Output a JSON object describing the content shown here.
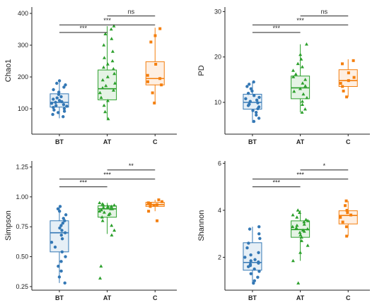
{
  "chart_data": [
    {
      "type": "box",
      "ylabel": "Chao1",
      "ylim": [
        20,
        420
      ],
      "yticks": [
        100,
        200,
        300,
        400
      ],
      "categories": [
        "BT",
        "AT",
        "C"
      ],
      "colors": [
        "#3478b5",
        "#2ca02c",
        "#f47f0e"
      ],
      "markers": [
        "circle",
        "triangle",
        "square"
      ],
      "boxes": [
        {
          "q1": 105,
          "median": 120,
          "q3": 147,
          "whisker_low": 70,
          "whisker_high": 190
        },
        {
          "q1": 128,
          "median": 163,
          "q3": 222,
          "whisker_low": 68,
          "whisker_high": 360
        },
        {
          "q1": 175,
          "median": 195,
          "q3": 248,
          "whisker_low": 115,
          "whisker_high": 355
        }
      ],
      "points": [
        [
          75,
          82,
          88,
          92,
          96,
          100,
          104,
          108,
          110,
          113,
          117,
          120,
          122,
          126,
          130,
          134,
          138,
          145,
          152,
          160,
          168,
          175,
          180,
          188
        ],
        [
          68,
          90,
          110,
          125,
          135,
          150,
          158,
          165,
          172,
          180,
          190,
          200,
          210,
          225,
          230,
          240,
          250,
          260,
          280,
          300,
          320,
          335,
          350,
          360
        ],
        [
          118,
          150,
          175,
          185,
          195,
          205,
          240,
          310,
          330,
          352
        ]
      ],
      "significance": [
        {
          "from": 0,
          "to": 1,
          "label": "***"
        },
        {
          "from": 0,
          "to": 2,
          "label": "***"
        },
        {
          "from": 1,
          "to": 2,
          "label": "ns"
        }
      ]
    },
    {
      "type": "box",
      "ylabel": "PD",
      "ylim": [
        3,
        31
      ],
      "yticks": [
        10,
        20,
        30
      ],
      "categories": [
        "BT",
        "AT",
        "C"
      ],
      "colors": [
        "#3478b5",
        "#2ca02c",
        "#f47f0e"
      ],
      "markers": [
        "circle",
        "triangle",
        "square"
      ],
      "boxes": [
        {
          "q1": 8.5,
          "median": 10,
          "q3": 11.8,
          "whisker_low": 5.5,
          "whisker_high": 14.5
        },
        {
          "q1": 10.8,
          "median": 13.2,
          "q3": 15.8,
          "whisker_low": 7.8,
          "whisker_high": 22.8
        },
        {
          "q1": 13.5,
          "median": 14.8,
          "q3": 17.2,
          "whisker_low": 11.2,
          "whisker_high": 19.5
        }
      ],
      "points": [
        [
          5.8,
          6.5,
          7.2,
          7.8,
          8.2,
          8.6,
          9.0,
          9.3,
          9.6,
          9.9,
          10.2,
          10.5,
          10.8,
          11.1,
          11.5,
          12.0,
          12.5,
          13.0,
          13.5,
          14.0,
          14.5
        ],
        [
          7.8,
          8.5,
          9.5,
          10.2,
          11.0,
          11.8,
          12.4,
          13.0,
          13.6,
          14.2,
          15.0,
          15.6,
          16.2,
          17.0,
          17.8,
          18.5,
          19.5,
          20.5,
          22.8
        ],
        [
          11.2,
          12.5,
          13.5,
          14.2,
          14.8,
          15.5,
          16.5,
          18.5,
          19.2
        ]
      ],
      "significance": [
        {
          "from": 0,
          "to": 1,
          "label": "***"
        },
        {
          "from": 0,
          "to": 2,
          "label": "***"
        },
        {
          "from": 1,
          "to": 2,
          "label": "ns"
        }
      ]
    },
    {
      "type": "box",
      "ylabel": "Simpson",
      "ylim": [
        0.22,
        1.3
      ],
      "yticks": [
        0.25,
        0.5,
        0.75,
        1.0,
        1.25
      ],
      "yticklabels": [
        "0.25",
        "0.50",
        "0.75",
        "1.00",
        "1.25"
      ],
      "categories": [
        "BT",
        "AT",
        "C"
      ],
      "colors": [
        "#3478b5",
        "#2ca02c",
        "#f47f0e"
      ],
      "markers": [
        "circle",
        "triangle",
        "square"
      ],
      "boxes": [
        {
          "q1": 0.54,
          "median": 0.7,
          "q3": 0.8,
          "whisker_low": 0.28,
          "whisker_high": 0.93
        },
        {
          "q1": 0.83,
          "median": 0.9,
          "q3": 0.925,
          "whisker_low": 0.69,
          "whisker_high": 0.95
        },
        {
          "q1": 0.92,
          "median": 0.935,
          "q3": 0.955,
          "whisker_low": 0.88,
          "whisker_high": 0.975
        }
      ],
      "points": [
        [
          0.28,
          0.33,
          0.38,
          0.42,
          0.46,
          0.5,
          0.54,
          0.58,
          0.62,
          0.65,
          0.68,
          0.7,
          0.72,
          0.74,
          0.76,
          0.78,
          0.8,
          0.82,
          0.85,
          0.88,
          0.9,
          0.92
        ],
        [
          0.32,
          0.42,
          0.68,
          0.72,
          0.76,
          0.8,
          0.83,
          0.85,
          0.86,
          0.87,
          0.88,
          0.89,
          0.9,
          0.9,
          0.91,
          0.91,
          0.92,
          0.92,
          0.93,
          0.93,
          0.94,
          0.95
        ],
        [
          0.8,
          0.88,
          0.92,
          0.93,
          0.935,
          0.94,
          0.95,
          0.96,
          0.975
        ]
      ],
      "significance": [
        {
          "from": 0,
          "to": 1,
          "label": "***"
        },
        {
          "from": 0,
          "to": 2,
          "label": "***"
        },
        {
          "from": 1,
          "to": 2,
          "label": "**"
        }
      ]
    },
    {
      "type": "box",
      "ylabel": "Shannon",
      "ylim": [
        0.6,
        6.1
      ],
      "yticks": [
        2,
        4,
        6
      ],
      "categories": [
        "BT",
        "AT",
        "C"
      ],
      "colors": [
        "#3478b5",
        "#2ca02c",
        "#f47f0e"
      ],
      "markers": [
        "circle",
        "triangle",
        "square"
      ],
      "boxes": [
        {
          "q1": 1.45,
          "median": 1.78,
          "q3": 2.62,
          "whisker_low": 0.9,
          "whisker_high": 3.3
        },
        {
          "q1": 2.85,
          "median": 3.18,
          "q3": 3.55,
          "whisker_low": 1.85,
          "whisker_high": 4.0
        },
        {
          "q1": 3.42,
          "median": 3.78,
          "q3": 3.98,
          "whisker_low": 2.9,
          "whisker_high": 4.4
        }
      ],
      "points": [
        [
          0.9,
          1.0,
          1.15,
          1.3,
          1.4,
          1.5,
          1.6,
          1.65,
          1.7,
          1.75,
          1.8,
          1.85,
          1.9,
          2.0,
          2.1,
          2.2,
          2.4,
          2.6,
          2.8,
          3.0,
          3.2,
          3.3
        ],
        [
          0.9,
          1.85,
          2.2,
          2.5,
          2.7,
          2.85,
          2.95,
          3.05,
          3.1,
          3.15,
          3.2,
          3.25,
          3.3,
          3.35,
          3.4,
          3.5,
          3.55,
          3.6,
          3.7,
          3.8,
          3.9,
          4.0
        ],
        [
          2.9,
          3.3,
          3.5,
          3.7,
          3.8,
          3.9,
          4.0,
          4.2,
          4.4
        ]
      ],
      "significance": [
        {
          "from": 0,
          "to": 1,
          "label": "***"
        },
        {
          "from": 0,
          "to": 2,
          "label": "***"
        },
        {
          "from": 1,
          "to": 2,
          "label": "*"
        }
      ]
    }
  ]
}
